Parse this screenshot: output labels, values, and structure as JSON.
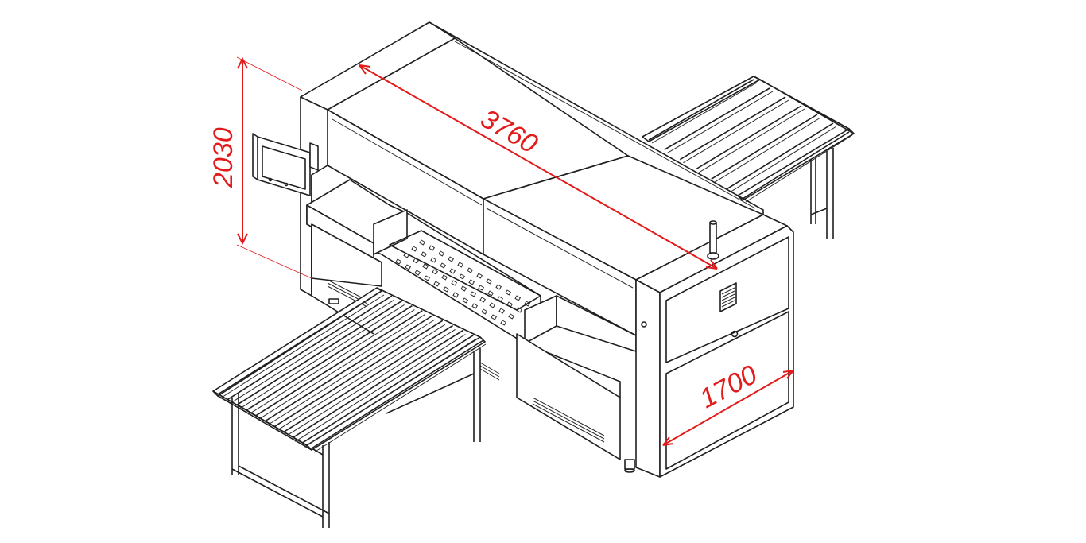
{
  "dimensions": {
    "height": {
      "label": "2030"
    },
    "length": {
      "label": "3760"
    },
    "width": {
      "label": "1700"
    }
  },
  "colors": {
    "dimension": "#e21a1a",
    "line": "#1f1f1f",
    "background": "#ffffff"
  },
  "parts": {
    "control_panel_icon": "touchscreen-panel",
    "signal_light_icon": "signal-tower"
  }
}
